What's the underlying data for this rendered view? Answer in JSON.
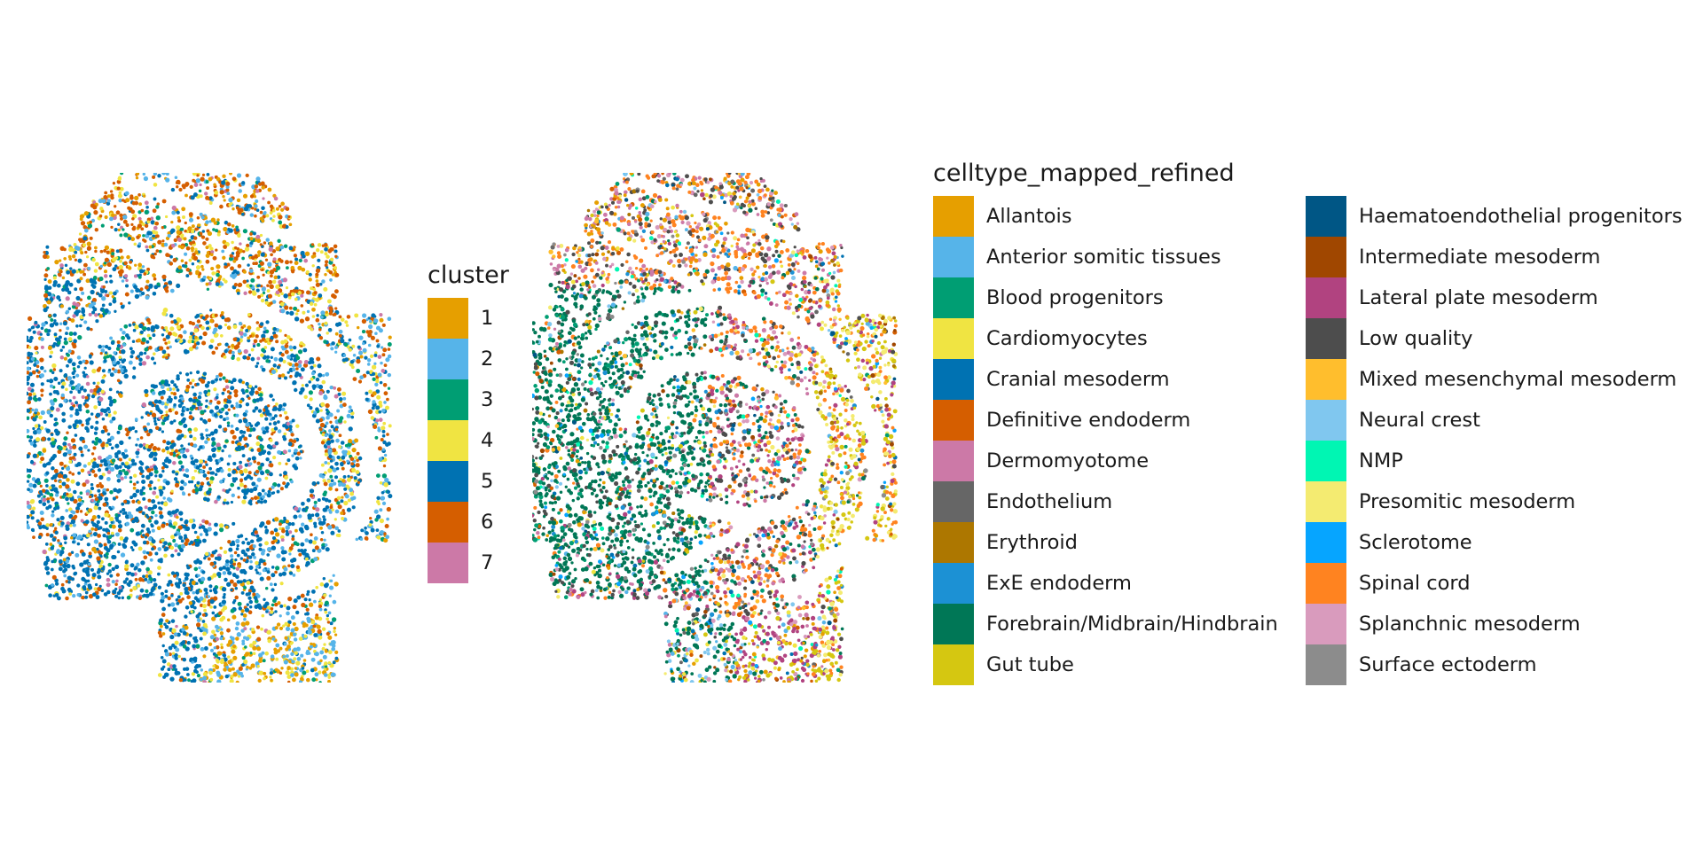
{
  "chart_data": [
    {
      "type": "scatter",
      "title": "",
      "xlabel": "",
      "ylabel": "",
      "color_by": "cluster",
      "legend": {
        "title": "cluster",
        "placement": "right",
        "entries": [
          {
            "label": "1",
            "color": "#E69F00"
          },
          {
            "label": "2",
            "color": "#56B4E9"
          },
          {
            "label": "3",
            "color": "#009E73"
          },
          {
            "label": "4",
            "color": "#F0E442"
          },
          {
            "label": "5",
            "color": "#0072B2"
          },
          {
            "label": "6",
            "color": "#D55E00"
          },
          {
            "label": "7",
            "color": "#CC79A7"
          }
        ]
      },
      "axes_visible": false
    },
    {
      "type": "scatter",
      "title": "",
      "xlabel": "",
      "ylabel": "",
      "color_by": "celltype_mapped_refined",
      "legend": {
        "title": "celltype_mapped_refined",
        "placement": "right",
        "columns": 2,
        "entries": [
          {
            "label": "Allantois",
            "color": "#E69F00"
          },
          {
            "label": "Anterior somitic tissues",
            "color": "#56B4E9"
          },
          {
            "label": "Blood progenitors",
            "color": "#009E73"
          },
          {
            "label": "Cardiomyocytes",
            "color": "#F0E442"
          },
          {
            "label": "Cranial mesoderm",
            "color": "#0072B2"
          },
          {
            "label": "Definitive endoderm",
            "color": "#D55E00"
          },
          {
            "label": "Dermomyotome",
            "color": "#CC79A7"
          },
          {
            "label": "Endothelium",
            "color": "#666666"
          },
          {
            "label": "Erythroid",
            "color": "#AD7700"
          },
          {
            "label": "ExE endoderm",
            "color": "#1C91D4"
          },
          {
            "label": "Forebrain/Midbrain/Hindbrain",
            "color": "#007756"
          },
          {
            "label": "Gut tube",
            "color": "#D5C711"
          },
          {
            "label": "Haematoendothelial progenitors",
            "color": "#005685"
          },
          {
            "label": "Intermediate mesoderm",
            "color": "#A04700"
          },
          {
            "label": "Lateral plate mesoderm",
            "color": "#B14380"
          },
          {
            "label": "Low quality",
            "color": "#4D4D4D"
          },
          {
            "label": "Mixed mesenchymal mesoderm",
            "color": "#FFBE2D"
          },
          {
            "label": "Neural crest",
            "color": "#80C7EF"
          },
          {
            "label": "NMP",
            "color": "#00F6B3"
          },
          {
            "label": "Presomitic mesoderm",
            "color": "#F4EB71"
          },
          {
            "label": "Sclerotome",
            "color": "#06A5FF"
          },
          {
            "label": "Spinal cord",
            "color": "#FF8320"
          },
          {
            "label": "Splanchnic mesoderm",
            "color": "#D99BBD"
          },
          {
            "label": "Surface ectoderm",
            "color": "#8C8C8C"
          }
        ]
      },
      "axes_visible": false
    }
  ]
}
